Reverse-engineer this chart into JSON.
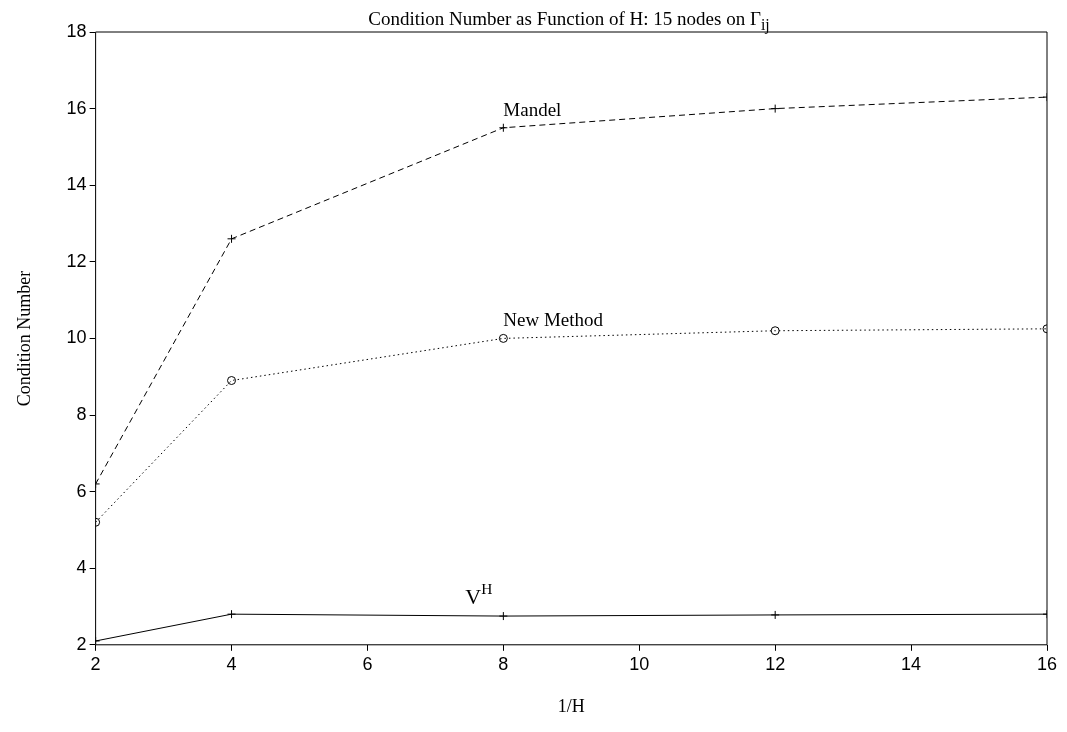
{
  "chart_data": {
    "type": "line",
    "title": "Condition Number as Function of H: 15 nodes on Γ$_{ij}$",
    "xlabel": "1/H",
    "ylabel": "Condition Number",
    "x": [
      2,
      4,
      8,
      12,
      16
    ],
    "series": [
      {
        "name": "Mandel",
        "color": "#000000",
        "values": [
          6.2,
          12.6,
          15.5,
          16.0,
          16.3
        ],
        "marker": "cross",
        "line_style": "dashed"
      },
      {
        "name": "New Method",
        "color": "#000000",
        "values": [
          5.2,
          8.9,
          10.0,
          10.2,
          10.25
        ],
        "marker": "circle",
        "line_style": "dotted"
      },
      {
        "name": "V$^{H}$",
        "color": "#000000",
        "values": [
          2.1,
          2.8,
          2.75,
          2.78,
          2.8
        ],
        "marker": "cross",
        "line_style": "solid"
      }
    ],
    "xlim": [
      2,
      16
    ],
    "xticks": [
      2,
      4,
      6,
      8,
      10,
      12,
      14,
      16
    ],
    "ylim": [
      2,
      18
    ],
    "yticks": [
      2,
      4,
      6,
      8,
      10,
      12,
      14,
      16,
      18
    ],
    "grid": false,
    "legend": false
  }
}
